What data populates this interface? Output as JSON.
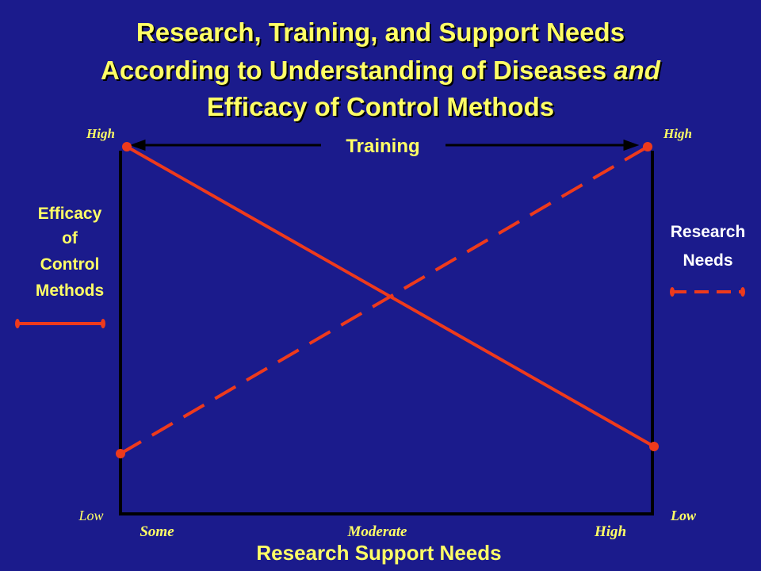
{
  "title": {
    "line1": "Research, Training, and Support Needs",
    "line2": "According to Understanding of Diseases",
    "line2_italic": "and",
    "line3": "Efficacy of Control Methods"
  },
  "left_axis": {
    "high": "High",
    "low": "Low",
    "label": [
      "Efficacy",
      "of",
      "Control",
      "Methods"
    ]
  },
  "right_axis": {
    "high": "High",
    "low": "Low",
    "label": [
      "Research",
      "Needs"
    ]
  },
  "top_arrow": "Training",
  "bottom_axis": {
    "ticks": [
      "Some",
      "Moderate",
      "High"
    ],
    "label": "Research Support Needs"
  }
}
